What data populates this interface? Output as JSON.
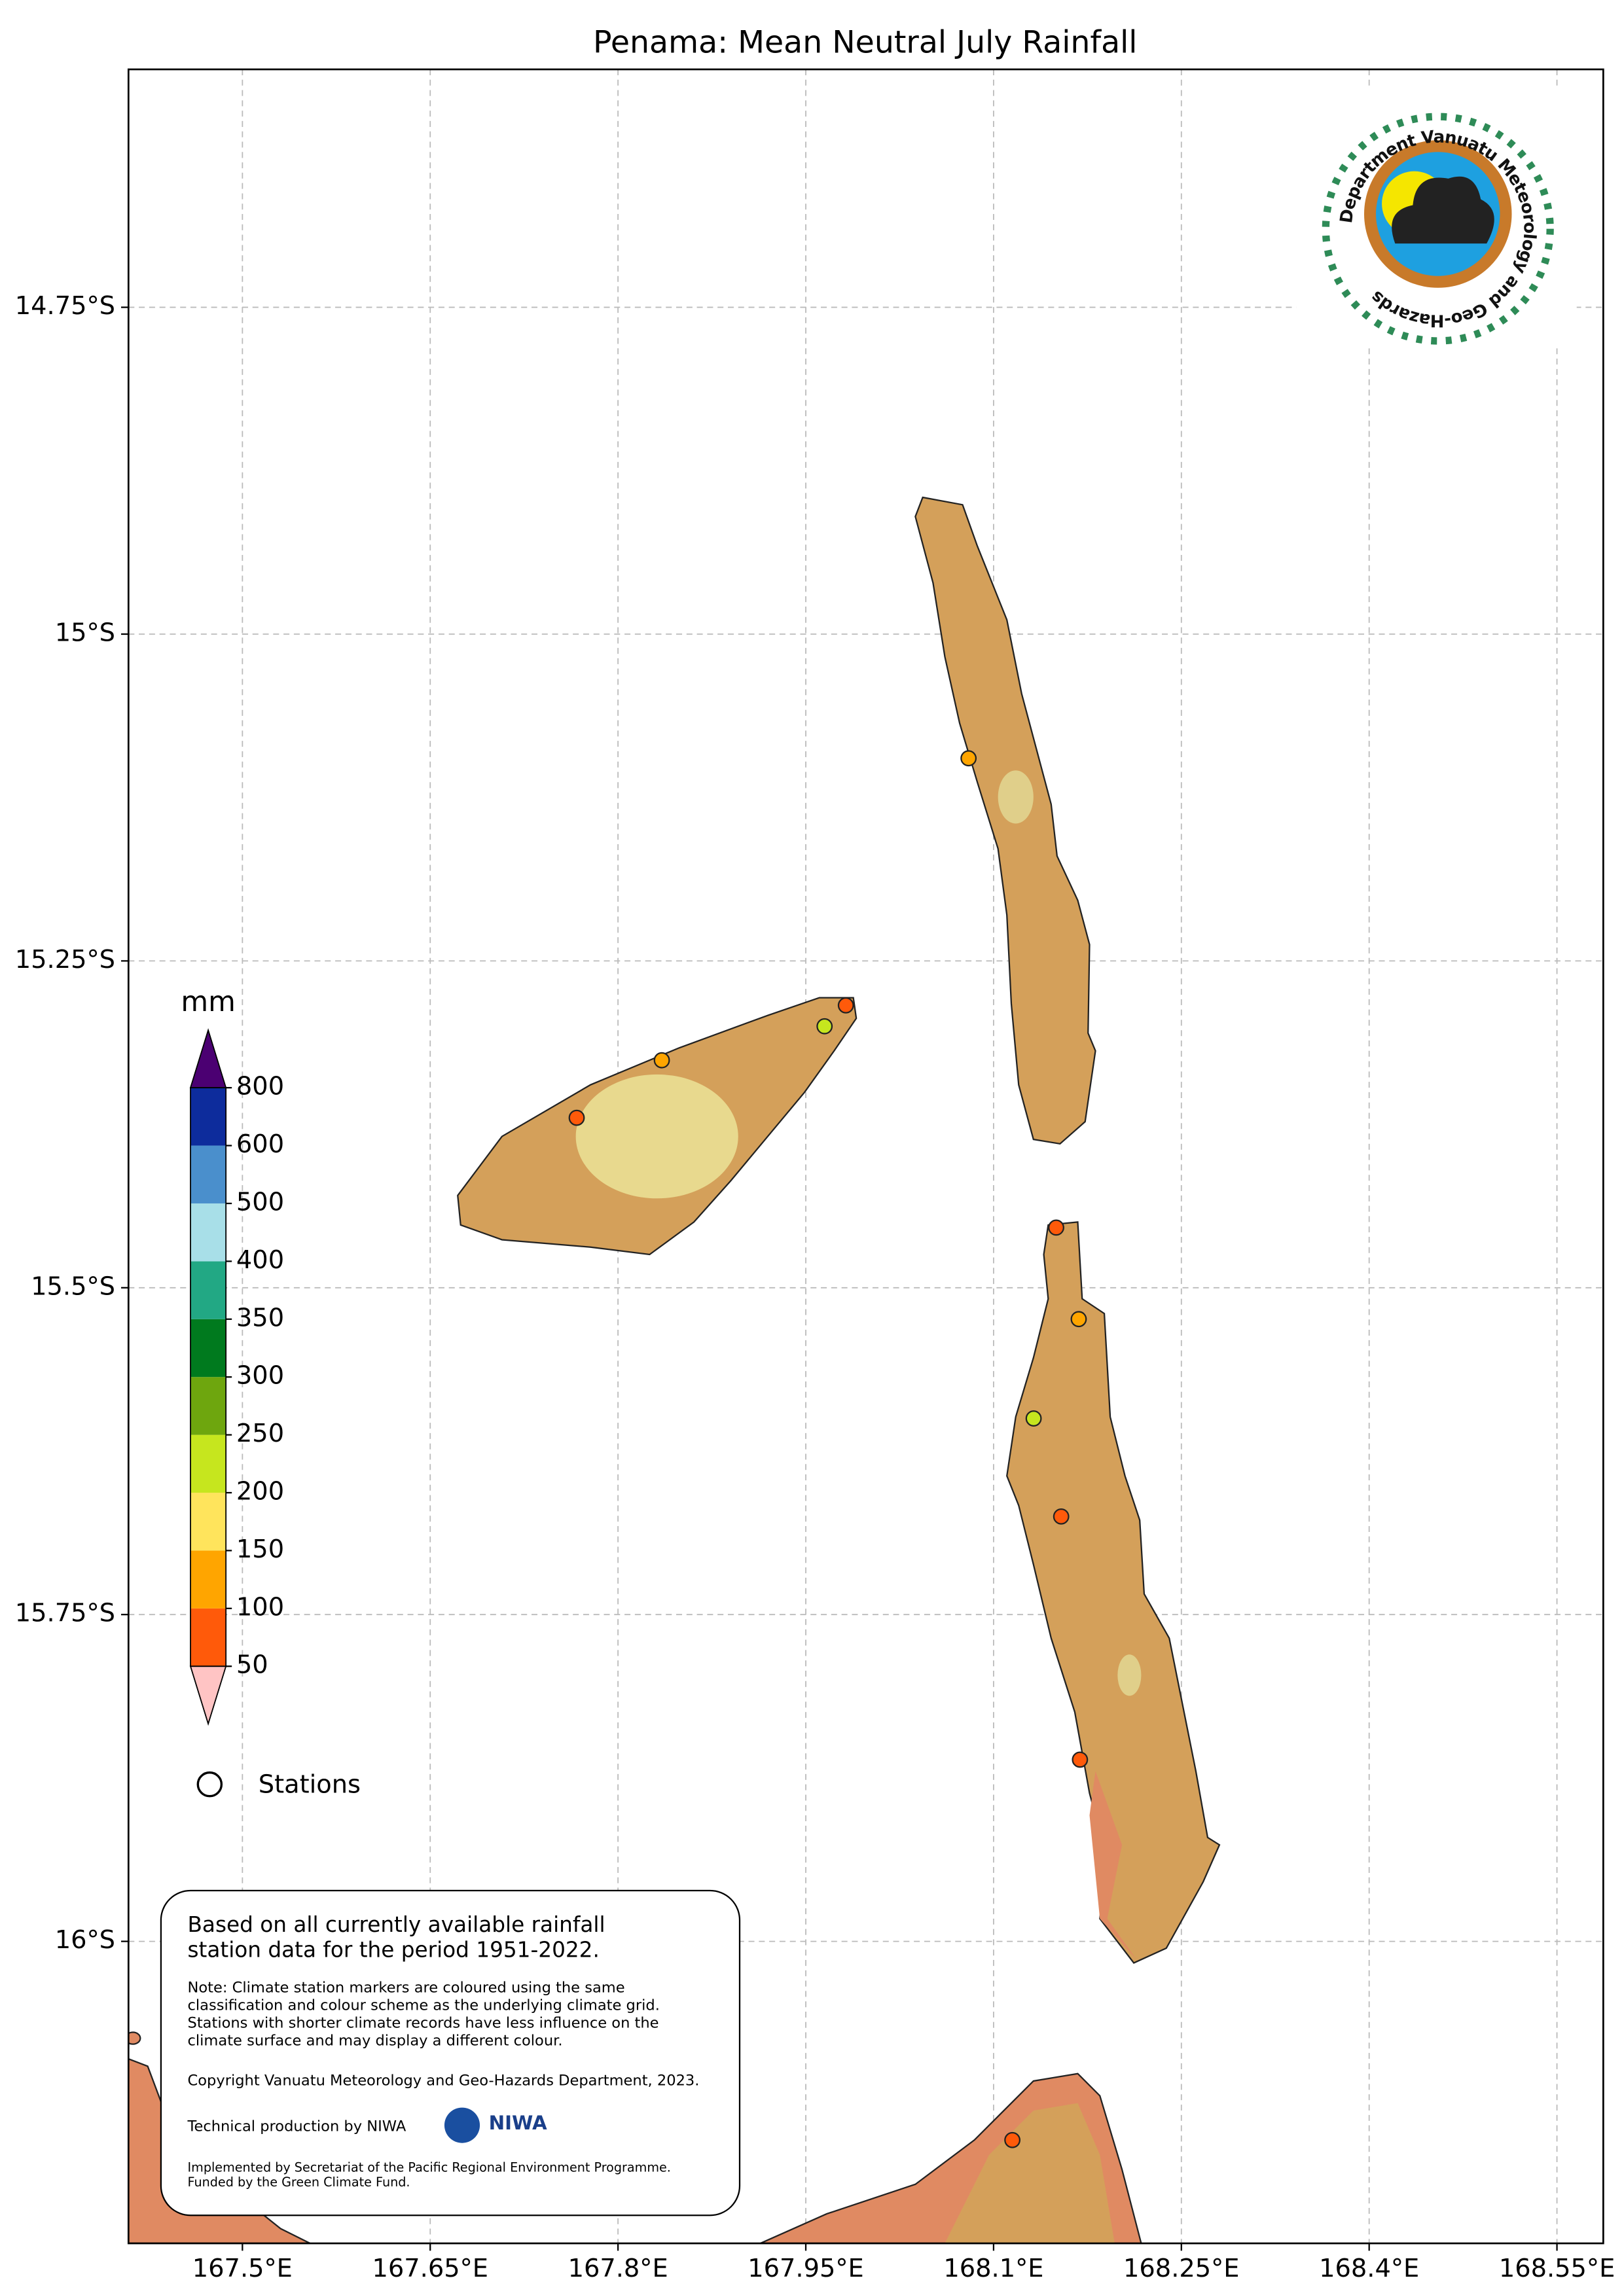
{
  "chart_data": {
    "type": "map",
    "title": "Penama: Mean Neutral July Rainfall",
    "xlim": [
      167.409,
      168.587
    ],
    "ylim": [
      -16.231,
      -14.568
    ],
    "xticks": [
      {
        "value": 167.5,
        "label": "167.5°E"
      },
      {
        "value": 167.65,
        "label": "167.65°E"
      },
      {
        "value": 167.8,
        "label": "167.8°E"
      },
      {
        "value": 167.95,
        "label": "167.95°E"
      },
      {
        "value": 168.1,
        "label": "168.1°E"
      },
      {
        "value": 168.25,
        "label": "168.25°E"
      },
      {
        "value": 168.4,
        "label": "168.4°E"
      },
      {
        "value": 168.55,
        "label": "168.55°E"
      }
    ],
    "yticks": [
      {
        "value": -14.75,
        "label": "14.75°S"
      },
      {
        "value": -15,
        "label": "15°S"
      },
      {
        "value": -15.25,
        "label": "15.25°S"
      },
      {
        "value": -15.5,
        "label": "15.5°S"
      },
      {
        "value": -15.75,
        "label": "15.75°S"
      },
      {
        "value": -16,
        "label": "16°S"
      }
    ],
    "grid": true,
    "colorbar": {
      "label": "mm",
      "levels": [
        50,
        100,
        150,
        200,
        250,
        300,
        350,
        400,
        500,
        600,
        800
      ],
      "under_color": "#ffc4c4",
      "over_color": "#4b0072",
      "colors": [
        "#ff5a0a",
        "#ffa500",
        "#ffe45c",
        "#c6e61e",
        "#6ea60e",
        "#007a1e",
        "#22a884",
        "#a8dfe8",
        "#4a8fcc",
        "#0d2c9c"
      ]
    },
    "stations_label": "Stations",
    "stations": {
      "lon": [
        168.08,
        167.835,
        167.965,
        167.982,
        167.767,
        168.15,
        168.168,
        168.132,
        168.154,
        168.169,
        168.115
      ],
      "lat": [
        -15.095,
        -15.326,
        -15.3,
        -15.284,
        -15.37,
        -15.454,
        -15.524,
        -15.6,
        -15.675,
        -15.861,
        -16.152
      ],
      "colors": [
        "#ffa500",
        "#ffa500",
        "#c6e61e",
        "#ff5a0a",
        "#ff5a0a",
        "#ff5a0a",
        "#ffa500",
        "#c6e61e",
        "#ff5a0a",
        "#ff5a0a",
        "#ff5a0a"
      ]
    },
    "note": {
      "main": [
        "Based on all currently available rainfall",
        "station data for the period 1951-2022."
      ],
      "detail": [
        "Note: Climate station markers are coloured using the same",
        "classification and colour scheme as the underlying climate grid.",
        "Stations with shorter climate records have less influence on the",
        "climate surface and may display a different colour."
      ],
      "copyright": "Copyright Vanuatu Meteorology and Geo-Hazards Department, 2023.",
      "production": "Technical production by NIWA",
      "niwa": "NIWA",
      "funding": [
        "Implemented by Secretariat of the Pacific Regional Environment Programme.",
        "Funded by the Green Climate Fund."
      ]
    },
    "logo_text": "Department Vanuatu Meteorology and Geo-Hazards"
  }
}
